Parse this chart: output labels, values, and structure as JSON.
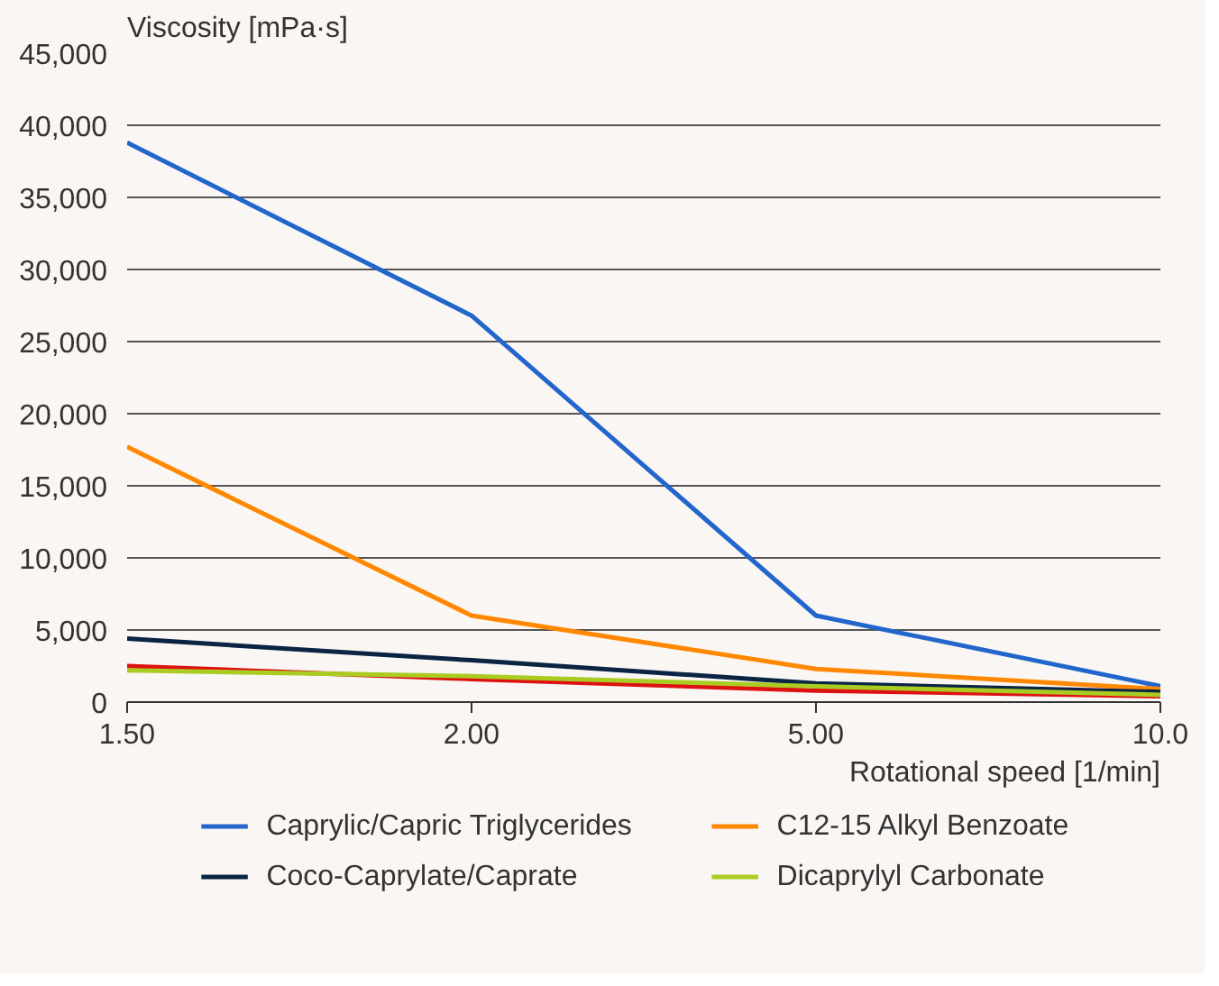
{
  "chart_data": {
    "type": "line",
    "ylabel": "Viscosity [mPa·s]",
    "xlabel": "Rotational speed [1/min]",
    "categories": [
      "1.50",
      "2.00",
      "5.00",
      "10.0"
    ],
    "ylim": [
      0,
      45000
    ],
    "yticks": [
      {
        "value": 0,
        "label": "0"
      },
      {
        "value": 5000,
        "label": "5,000"
      },
      {
        "value": 10000,
        "label": "10,000"
      },
      {
        "value": 15000,
        "label": "15,000"
      },
      {
        "value": 20000,
        "label": "20,000"
      },
      {
        "value": 25000,
        "label": "25,000"
      },
      {
        "value": 30000,
        "label": "30,000"
      },
      {
        "value": 35000,
        "label": "35,000"
      },
      {
        "value": 40000,
        "label": "40,000"
      },
      {
        "value": 45000,
        "label": "45,000"
      }
    ],
    "grid": "y",
    "legend": "bottom",
    "marker": "none",
    "line_style": "solid",
    "series": [
      {
        "name": "Caprylic/Capric Triglycerides",
        "color": "#2266cc",
        "values": [
          38800,
          26800,
          6000,
          1100
        ]
      },
      {
        "name": "C12-15 Alkyl Benzoate",
        "color": "#ff8800",
        "values": [
          17700,
          6000,
          2300,
          900
        ]
      },
      {
        "name": "Coco-Caprylate/Caprate",
        "color": "#0a2444",
        "values": [
          4400,
          2900,
          1300,
          700
        ]
      },
      {
        "color": "#dd1111",
        "values": [
          2500,
          1600,
          800,
          400
        ]
      },
      {
        "name": "Dicaprylyl Carbonate",
        "color": "#aacc22",
        "values": [
          2200,
          1800,
          1100,
          500
        ]
      }
    ]
  }
}
